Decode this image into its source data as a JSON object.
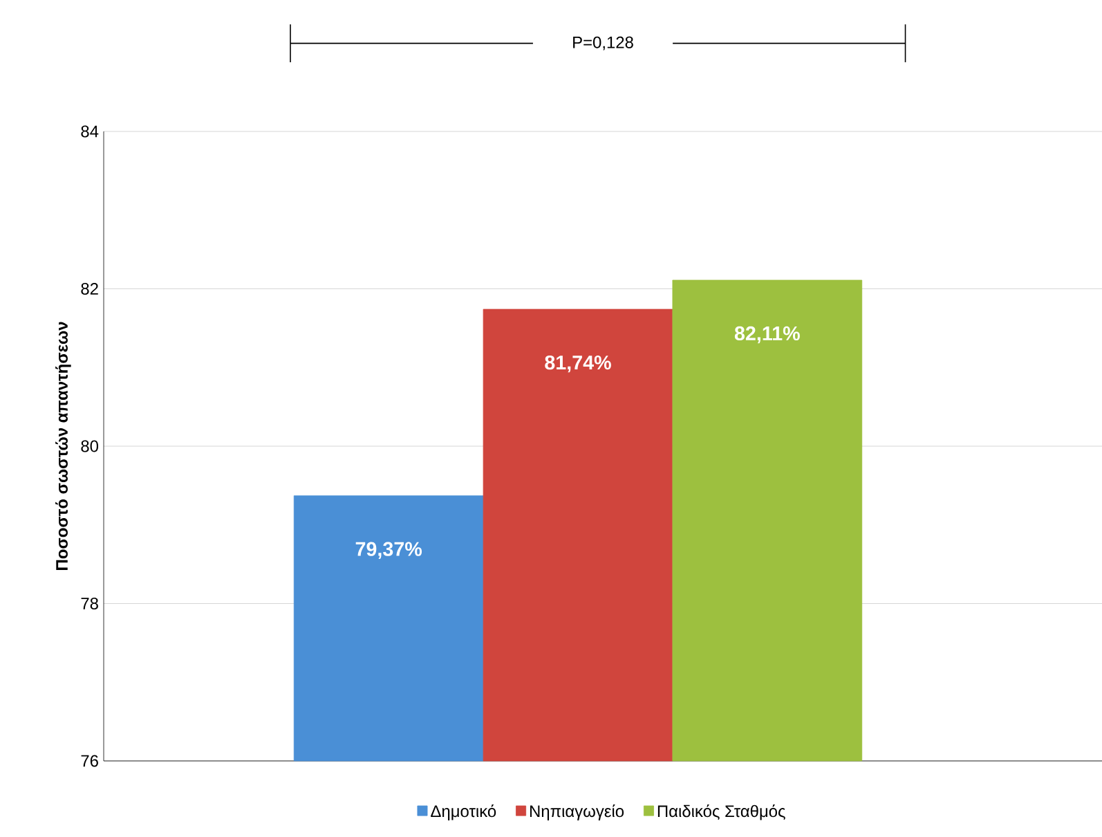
{
  "chart_data": {
    "type": "bar",
    "ylabel": "Ποσοστό σωστών απαντήσεων",
    "categories": [
      null
    ],
    "series": [
      {
        "name": "Δημοτικό",
        "color": "#4a8fd6",
        "values": [
          79.37
        ],
        "value_labels": [
          "79,37%"
        ]
      },
      {
        "name": "Νηπιαγωγείο",
        "color": "#d0453d",
        "values": [
          81.74
        ],
        "value_labels": [
          "81,74%"
        ]
      },
      {
        "name": "Παιδικός Σταθμός",
        "color": "#9dc03f",
        "values": [
          82.11
        ],
        "value_labels": [
          "82,11%"
        ]
      }
    ],
    "ylim": [
      76,
      84
    ],
    "yticks": [
      76,
      78,
      80,
      82,
      84
    ],
    "grid": "y",
    "legend": "bottom",
    "annotations": [
      "P=0,128"
    ]
  }
}
